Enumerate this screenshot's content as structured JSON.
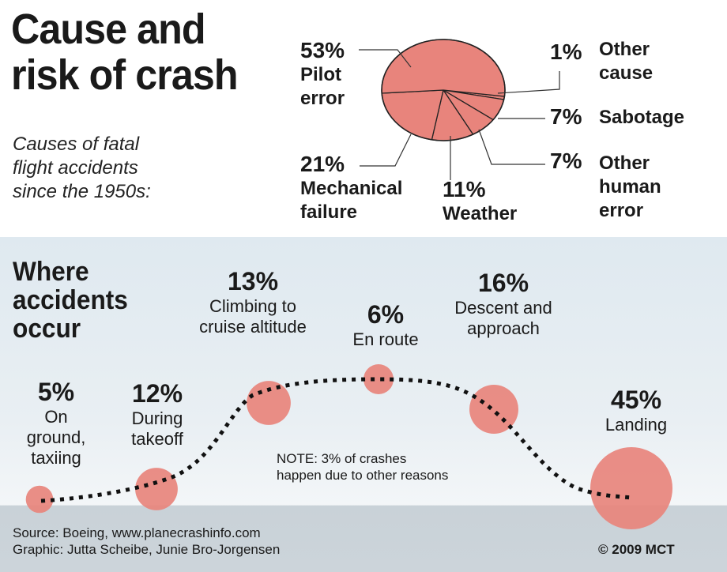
{
  "title": "Cause and risk of crash",
  "title_lines": [
    "Cause and",
    "risk of crash"
  ],
  "subtitle_lines": [
    "Causes of fatal",
    "flight accidents",
    "since the 1950s:"
  ],
  "colors": {
    "marker": "#e8847c",
    "marker_edge": "#c05a54",
    "bg_top": "#dfe9f0",
    "ground": "#c8d1d8"
  },
  "chart_data": [
    {
      "type": "pie",
      "title": "Causes of fatal flight accidents since the 1950s:",
      "slices": [
        {
          "label": "Pilot error",
          "label_lines": [
            "Pilot",
            "error"
          ],
          "value": 53,
          "display": "53%"
        },
        {
          "label": "Mechanical failure",
          "label_lines": [
            "Mechanical",
            "failure"
          ],
          "value": 21,
          "display": "21%"
        },
        {
          "label": "Weather",
          "label_lines": [
            "Weather"
          ],
          "value": 11,
          "display": "11%"
        },
        {
          "label": "Other human error",
          "label_lines": [
            "Other",
            "human",
            "error"
          ],
          "value": 7,
          "display": "7%"
        },
        {
          "label": "Sabotage",
          "label_lines": [
            "Sabotage"
          ],
          "value": 7,
          "display": "7%"
        },
        {
          "label": "Other cause",
          "label_lines": [
            "Other",
            "cause"
          ],
          "value": 1,
          "display": "1%"
        }
      ]
    },
    {
      "type": "scatter",
      "title": "Where accidents occur",
      "title_lines": [
        "Where",
        "accidents",
        "occur"
      ],
      "points": [
        {
          "phase": "On ground, taxiing",
          "label_lines": [
            "On",
            "ground,",
            "taxiing"
          ],
          "value": 5,
          "display": "5%"
        },
        {
          "phase": "During takeoff",
          "label_lines": [
            "During",
            "takeoff"
          ],
          "value": 12,
          "display": "12%"
        },
        {
          "phase": "Climbing to cruise altitude",
          "label_lines": [
            "Climbing to",
            "cruise altitude"
          ],
          "value": 13,
          "display": "13%"
        },
        {
          "phase": "En route",
          "label_lines": [
            "En route"
          ],
          "value": 6,
          "display": "6%"
        },
        {
          "phase": "Descent and approach",
          "label_lines": [
            "Descent and",
            "approach"
          ],
          "value": 16,
          "display": "16%"
        },
        {
          "phase": "Landing",
          "label_lines": [
            "Landing"
          ],
          "value": 45,
          "display": "45%"
        }
      ]
    }
  ],
  "note_lines": [
    "NOTE: 3% of crashes",
    "happen due to other reasons"
  ],
  "source_lines": [
    "Source: Boeing, www.planecrashinfo.com",
    "Graphic: Jutta Scheibe, Junie Bro-Jorgensen"
  ],
  "copyright": "© 2009 MCT"
}
